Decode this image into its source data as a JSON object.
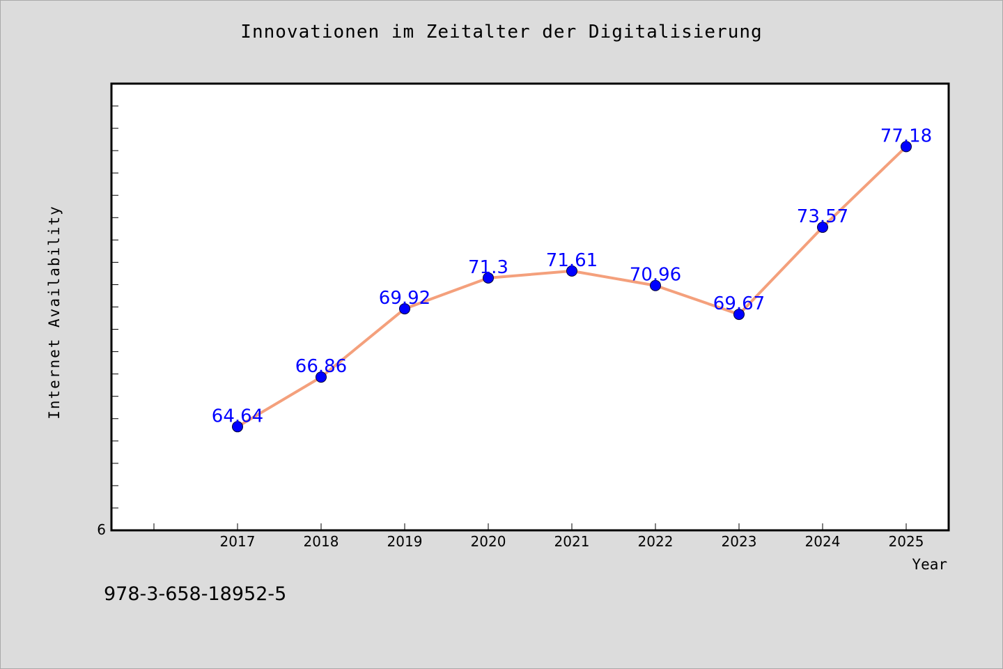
{
  "chart_data": {
    "type": "line",
    "title": "Innovationen im Zeitalter der Digitalisierung",
    "xlabel": "Year",
    "ylabel": "Internet Availability",
    "x": [
      "2017",
      "2018",
      "2019",
      "2020",
      "2021",
      "2022",
      "2023",
      "2024",
      "2025"
    ],
    "series": [
      {
        "values": [
          64.64,
          66.86,
          69.92,
          71.3,
          71.61,
          70.96,
          69.67,
          73.57,
          77.18
        ],
        "labels": [
          "64.64",
          "66.86",
          "69.92",
          "71.3",
          "71.61",
          "70.96",
          "69.67",
          "73.57",
          "77.18"
        ],
        "line_color": "#f4a07c",
        "marker_color": "#0000ff"
      }
    ],
    "y_tick_label": "6",
    "ylim": [
      60,
      80
    ],
    "grid": false,
    "background": "#ffffff",
    "figure_background": "#dcdcdc"
  },
  "footer": {
    "isbn": "978-3-658-18952-5"
  }
}
